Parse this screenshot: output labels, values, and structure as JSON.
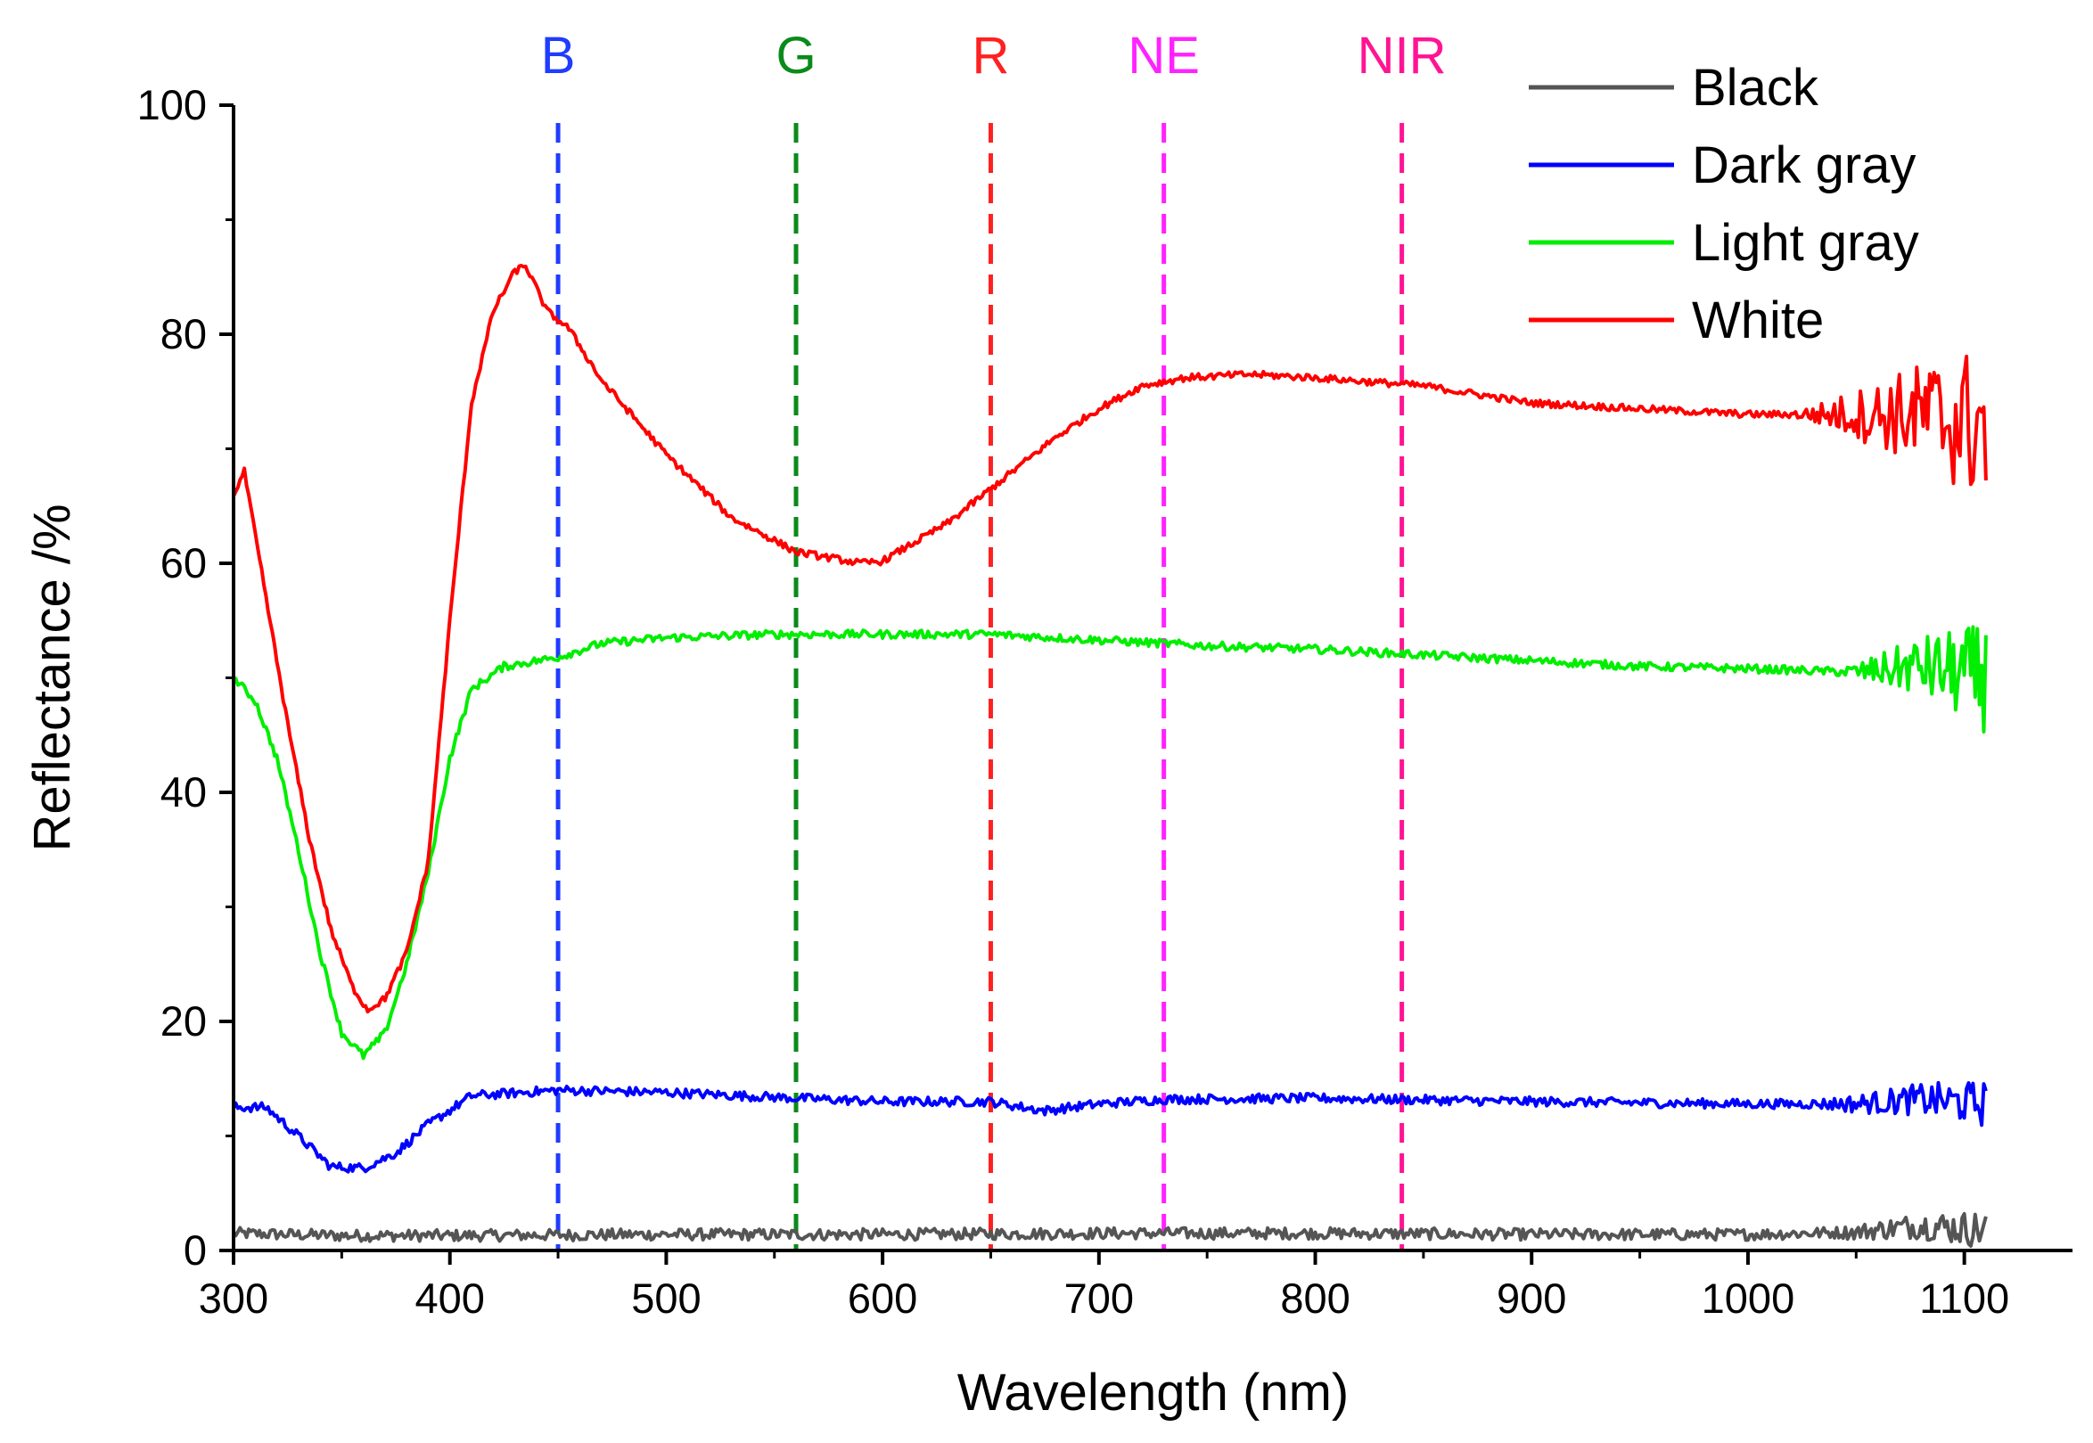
{
  "chart_data": {
    "type": "line",
    "title": "",
    "xlabel": "Wavelength (nm)",
    "ylabel": "Reflectance /%",
    "xlim": [
      300,
      1150
    ],
    "ylim": [
      0,
      100
    ],
    "xticks": [
      300,
      400,
      500,
      600,
      700,
      800,
      900,
      1000,
      1100
    ],
    "yticks": [
      0,
      20,
      40,
      60,
      80,
      100
    ],
    "grid": false,
    "legend_position": "top-right",
    "bands": [
      {
        "label": "B",
        "x": 450,
        "color": "#1f3cff"
      },
      {
        "label": "G",
        "x": 560,
        "color": "#0a8a1a"
      },
      {
        "label": "R",
        "x": 650,
        "color": "#ff2020"
      },
      {
        "label": "NE",
        "x": 730,
        "color": "#ff22ff"
      },
      {
        "label": "NIR",
        "x": 840,
        "color": "#ff1493"
      }
    ],
    "series": [
      {
        "name": "Black",
        "color": "#555555",
        "noise": 0.5,
        "x": [
          300,
          350,
          400,
          500,
          600,
          700,
          800,
          900,
          1000,
          1050,
          1080,
          1110
        ],
        "y": [
          1.5,
          1.3,
          1.3,
          1.4,
          1.4,
          1.5,
          1.5,
          1.4,
          1.4,
          1.6,
          2.2,
          1.8
        ]
      },
      {
        "name": "Dark gray",
        "color": "#0000ff",
        "noise": 0.4,
        "x": [
          300,
          315,
          330,
          345,
          360,
          375,
          390,
          410,
          450,
          500,
          560,
          600,
          650,
          665,
          675,
          700,
          730,
          800,
          900,
          1000,
          1050,
          1080,
          1110
        ],
        "y": [
          12.5,
          12.5,
          10,
          7.3,
          7.2,
          8.5,
          11,
          13.5,
          14,
          13.8,
          13.3,
          13,
          13,
          12.5,
          12.2,
          12.8,
          13.2,
          13.3,
          13,
          12.8,
          12.8,
          13.2,
          12.8
        ]
      },
      {
        "name": "Light gray",
        "color": "#00ee00",
        "noise": 0.35,
        "x": [
          300,
          310,
          320,
          330,
          340,
          350,
          360,
          370,
          380,
          390,
          400,
          410,
          425,
          450,
          470,
          500,
          550,
          600,
          650,
          700,
          750,
          800,
          850,
          900,
          950,
          1000,
          1050,
          1080,
          1110
        ],
        "y": [
          50,
          48,
          43,
          35,
          26,
          19,
          17,
          19,
          25,
          33,
          43,
          49,
          51,
          51.8,
          53,
          53.5,
          53.8,
          53.8,
          53.8,
          53.3,
          52.8,
          52.5,
          52,
          51.5,
          51,
          50.8,
          50.5,
          51,
          50
        ],
        "noisy_start": 1040,
        "noisy_amp": 4.5
      },
      {
        "name": "White",
        "color": "#ff0000",
        "noise": 0.3,
        "x": [
          300,
          305,
          315,
          325,
          335,
          345,
          355,
          362,
          370,
          380,
          390,
          400,
          410,
          420,
          430,
          435,
          440,
          445,
          455,
          470,
          500,
          530,
          560,
          590,
          600,
          630,
          660,
          680,
          700,
          720,
          740,
          770,
          800,
          850,
          900,
          950,
          1000,
          1050,
          1080,
          1110
        ],
        "y": [
          66,
          68,
          57,
          46,
          36,
          28,
          23,
          21,
          22,
          26,
          34,
          55,
          74,
          82,
          85.5,
          86,
          84,
          82,
          80.5,
          76,
          69.5,
          64,
          61,
          60,
          60.2,
          63.5,
          68,
          71,
          73.5,
          75.5,
          76.2,
          76.5,
          76.2,
          75.5,
          74,
          73.5,
          73,
          73,
          73,
          72
        ],
        "noisy_start": 1020,
        "noisy_amp": 7
      }
    ]
  }
}
